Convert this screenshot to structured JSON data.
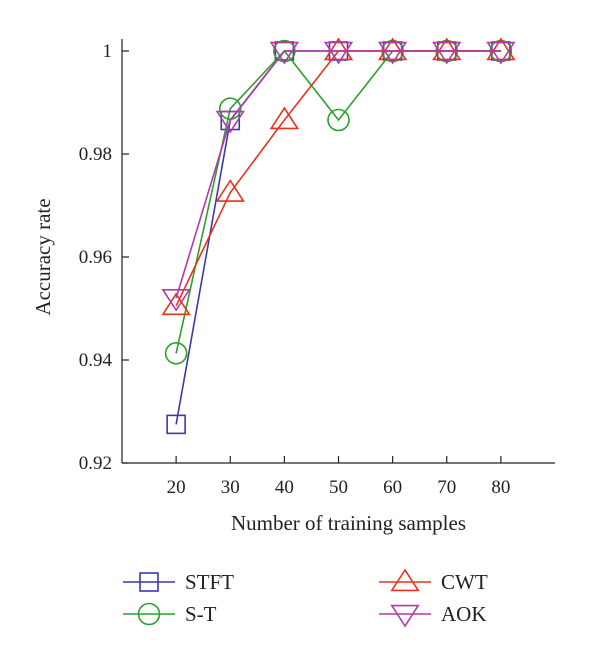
{
  "chart_data": {
    "type": "line",
    "title": "",
    "xlabel": "Number of training samples",
    "ylabel": "Accuracy rate",
    "x": [
      20,
      30,
      40,
      50,
      60,
      70,
      80
    ],
    "x_ticks": [
      "20",
      "30",
      "40",
      "50",
      "60",
      "70",
      "80"
    ],
    "y_ticks": [
      "0.92",
      "0.94",
      "0.96",
      "0.98",
      "1"
    ],
    "xlim": [
      10,
      90
    ],
    "ylim": [
      0.92,
      1.0
    ],
    "grid": false,
    "legend_position": "bottom",
    "series": [
      {
        "name": "STFT",
        "color": "#3a3aa8",
        "marker": "square",
        "values": [
          0.9275,
          0.9865,
          1.0,
          1.0,
          1.0,
          1.0,
          1.0
        ]
      },
      {
        "name": "S-T",
        "color": "#2ca02c",
        "marker": "circle",
        "values": [
          0.9413,
          0.9888,
          1.0,
          0.9866,
          1.0,
          1.0,
          1.0
        ]
      },
      {
        "name": "CWT",
        "color": "#e8321e",
        "marker": "triangle-up",
        "values": [
          0.9505,
          0.9725,
          0.9866,
          1.0,
          1.0,
          1.0,
          1.0
        ]
      },
      {
        "name": "AOK",
        "color": "#b23aa8",
        "marker": "triangle-down",
        "values": [
          0.952,
          0.9866,
          1.0,
          1.0,
          1.0,
          1.0,
          1.0
        ]
      }
    ]
  }
}
